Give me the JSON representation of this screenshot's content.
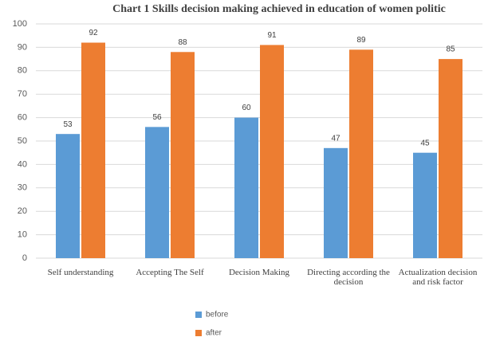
{
  "chart_data": {
    "type": "bar",
    "title": "Chart 1  Skills decision making achieved in education of women politic",
    "categories": [
      "Self understanding",
      "Accepting The Self",
      "Decision Making",
      "Directing according the decision",
      "Actualization decision and risk factor"
    ],
    "series": [
      {
        "name": "before",
        "color": "#5b9bd5",
        "values": [
          53,
          56,
          60,
          47,
          45
        ]
      },
      {
        "name": "after",
        "color": "#ed7d31",
        "values": [
          92,
          88,
          91,
          89,
          85
        ]
      }
    ],
    "ylim": [
      0,
      100
    ],
    "yticks": [
      0,
      10,
      20,
      30,
      40,
      50,
      60,
      70,
      80,
      90,
      100
    ],
    "grid": true,
    "legend": "bottom"
  }
}
